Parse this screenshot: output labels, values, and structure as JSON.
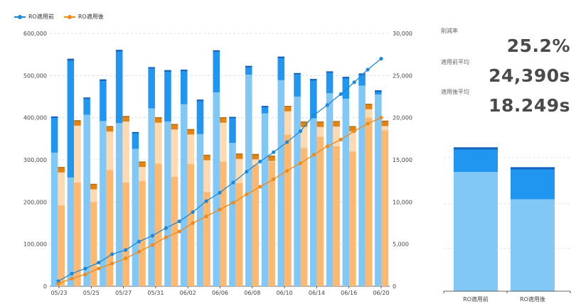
{
  "legend": {
    "before_label": "RO適用前",
    "after_label": "RO適用後"
  },
  "colors": {
    "before_light": "#82c8f7",
    "before_mid": "#2196f0",
    "before_dark": "#1565c0",
    "after_light": "#ffb870",
    "after_pale": "#ffd9b0",
    "after_mid": "#e8820e",
    "after_dark": "#c06a00",
    "line_before": "#1f88d8",
    "line_after": "#f08a1a"
  },
  "kpis": {
    "reduction_label": "削減率",
    "reduction_value": "25.2%",
    "before_avg_label": "適用前平均",
    "before_avg_value": "24,390s",
    "after_avg_label": "適用後平均",
    "after_avg_value": "18.249s"
  },
  "chart_data": [
    {
      "type": "bar+line",
      "x_tick_labels": [
        "05/23",
        "05/25",
        "05/27",
        "05/31",
        "06/02",
        "06/06",
        "06/08",
        "06/10",
        "06/14",
        "06/16",
        "06/20"
      ],
      "left_axis": {
        "ylim": [
          0,
          600000
        ],
        "ticks": [
          "0",
          "100,000",
          "200,000",
          "300,000",
          "400,000",
          "500,000",
          "600,000"
        ]
      },
      "right_axis": {
        "ylim": [
          0,
          30000
        ],
        "ticks": [
          "0",
          "5,000",
          "10,000",
          "15,000",
          "20,000",
          "25,000",
          "30,000"
        ]
      },
      "series": [
        {
          "name": "RO適用前",
          "kind": "stacked-bar",
          "light": [
            317000,
            258000,
            407000,
            392000,
            387000,
            326000,
            422000,
            391000,
            432000,
            361000,
            460000,
            340000,
            502000,
            410000,
            489000,
            450000,
            398000,
            458000,
            445000,
            476000,
            455000
          ],
          "mid": [
            82000,
            277000,
            37000,
            95000,
            170000,
            36000,
            94000,
            118000,
            78000,
            78000,
            96000,
            58000,
            17000,
            14000,
            52000,
            52000,
            90000,
            48000,
            48000,
            25000,
            6000
          ],
          "dark": [
            4000,
            5000,
            4000,
            4000,
            4000,
            4000,
            4000,
            4000,
            4000,
            4000,
            4000,
            4000,
            4000,
            4000,
            4000,
            4000,
            4000,
            4000,
            4000,
            4000,
            4000
          ]
        },
        {
          "name": "RO適用後",
          "kind": "stacked-bar",
          "light": [
            192000,
            246000,
            200000,
            276000,
            246000,
            250000,
            291000,
            260000,
            290000,
            224000,
            296000,
            245000,
            288000,
            295000,
            360000,
            328000,
            355000,
            332000,
            320000,
            400000,
            370000
          ],
          "pale": [
            78000,
            135000,
            30000,
            91000,
            145000,
            33000,
            97000,
            112000,
            70000,
            75000,
            92000,
            57000,
            13000,
            2000,
            55000,
            50000,
            23000,
            47000,
            47000,
            20000,
            10000
          ],
          "mid": [
            10000,
            10000,
            10000,
            10000,
            10000,
            10000,
            10000,
            10000,
            10000,
            10000,
            10000,
            10000,
            10000,
            10000,
            10000,
            10000,
            10000,
            10000,
            10000,
            10000,
            10000
          ],
          "dark": [
            3000,
            3000,
            3000,
            3000,
            3000,
            3000,
            3000,
            3000,
            3000,
            3000,
            3000,
            3000,
            3000,
            3000,
            3000,
            3000,
            3000,
            3000,
            3000,
            3000,
            3000
          ]
        },
        {
          "name": "RO適用前",
          "kind": "cumulative-line",
          "axis": "right",
          "values": [
            600,
            1500,
            2100,
            2800,
            3800,
            4300,
            5300,
            6000,
            6900,
            7700,
            8800,
            10100,
            11100,
            12300,
            13600,
            14800,
            15900,
            17100,
            18400,
            20300,
            21500,
            22800,
            24200,
            25700,
            27000
          ]
        },
        {
          "name": "RO適用後",
          "kind": "cumulative-line",
          "axis": "right",
          "values": [
            300,
            900,
            1400,
            2100,
            2700,
            3300,
            4100,
            4900,
            5800,
            6500,
            7500,
            8300,
            9100,
            9900,
            10900,
            11800,
            12700,
            13700,
            14600,
            15600,
            16600,
            17400,
            18400,
            19300,
            20000
          ]
        }
      ]
    },
    {
      "type": "bar",
      "categories": [
        "RO適用前",
        "RO適用後"
      ],
      "series": [
        {
          "name": "light",
          "values": [
            48000,
            37000
          ]
        },
        {
          "name": "mid",
          "values": [
            9000,
            12000
          ]
        },
        {
          "name": "dark",
          "values": [
            900,
            900
          ]
        }
      ],
      "ylim": [
        0,
        64000
      ]
    }
  ]
}
